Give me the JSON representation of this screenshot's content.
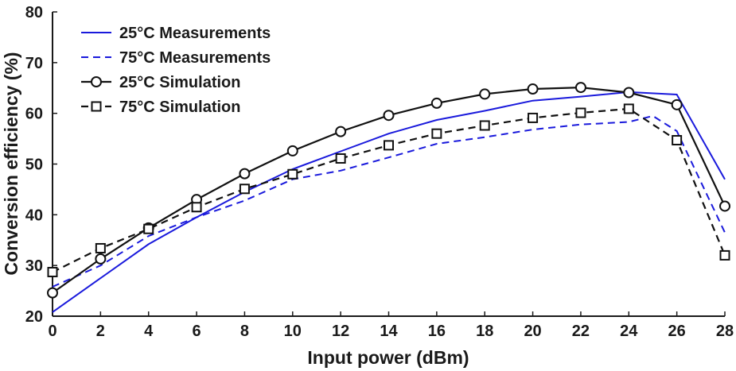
{
  "chart_data": {
    "type": "line",
    "title": "",
    "xlabel": "Input power (dBm)",
    "ylabel": "Conversion efficiency (%)",
    "xlim": [
      0,
      28
    ],
    "ylim": [
      20,
      80
    ],
    "xticks": [
      0,
      2,
      4,
      6,
      8,
      10,
      12,
      14,
      16,
      18,
      20,
      22,
      24,
      26,
      28
    ],
    "yticks": [
      20,
      30,
      40,
      50,
      60,
      70,
      80
    ],
    "grid": false,
    "legend_position": "top-left",
    "series": [
      {
        "name": "25°C Measurements",
        "color": "#1a1adc",
        "line_style": "solid",
        "marker": "none",
        "x": [
          0,
          2,
          4,
          6,
          8,
          10,
          12,
          14,
          16,
          18,
          20,
          22,
          24,
          26,
          28
        ],
        "values": [
          20.8,
          27.5,
          34.2,
          39.5,
          44.5,
          49.0,
          52.5,
          56.0,
          58.7,
          60.5,
          62.5,
          63.3,
          64.2,
          63.7,
          47.0
        ]
      },
      {
        "name": "75°C Measurements",
        "color": "#1a1adc",
        "line_style": "dashed",
        "marker": "none",
        "x": [
          0,
          2,
          4,
          6,
          8,
          10,
          12,
          14,
          16,
          18,
          20,
          22,
          24,
          25,
          26,
          28
        ],
        "values": [
          25.8,
          30.0,
          35.8,
          39.5,
          42.8,
          47.0,
          48.7,
          51.3,
          54.0,
          55.3,
          56.8,
          57.8,
          58.3,
          59.5,
          56.5,
          36.5
        ]
      },
      {
        "name": "25°C Simulation",
        "color": "#111111",
        "line_style": "solid",
        "marker": "circle",
        "x": [
          0,
          2,
          4,
          6,
          8,
          10,
          12,
          14,
          16,
          18,
          20,
          22,
          24,
          26,
          28
        ],
        "values": [
          24.6,
          31.3,
          37.4,
          43.0,
          48.1,
          52.6,
          56.4,
          59.6,
          62.0,
          63.8,
          64.8,
          65.1,
          64.1,
          61.7,
          41.7
        ]
      },
      {
        "name": "75°C Simulation",
        "color": "#111111",
        "line_style": "dashed",
        "marker": "square",
        "x": [
          0,
          2,
          4,
          6,
          8,
          10,
          12,
          14,
          16,
          18,
          20,
          22,
          24,
          26,
          28
        ],
        "values": [
          28.7,
          33.4,
          37.2,
          41.5,
          45.1,
          48.0,
          51.1,
          53.7,
          56.0,
          57.6,
          59.1,
          60.1,
          60.9,
          54.7,
          32.0
        ]
      }
    ]
  }
}
